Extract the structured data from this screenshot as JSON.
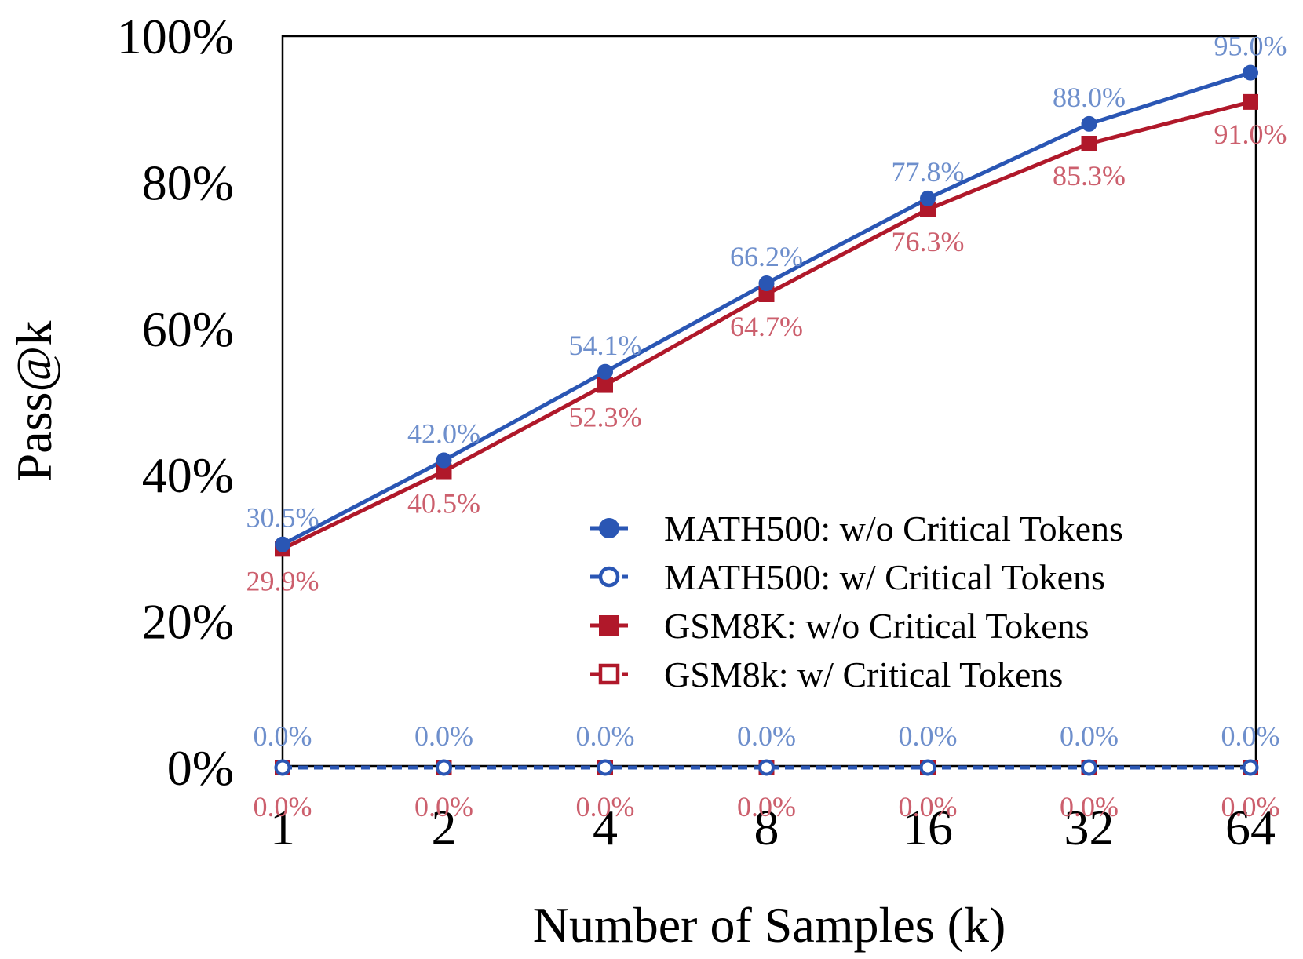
{
  "chart_data": {
    "type": "line",
    "title": "",
    "xlabel": "Number of Samples (k)",
    "ylabel": "Pass@k",
    "categories": [
      "1",
      "2",
      "4",
      "8",
      "16",
      "32",
      "64"
    ],
    "y_ticks": [
      "0%",
      "20%",
      "40%",
      "60%",
      "80%",
      "100%"
    ],
    "ylim": [
      0,
      100
    ],
    "grid": false,
    "legend_position": "center-right",
    "series": [
      {
        "name": "MATH500: w/o Critical Tokens",
        "values": [
          30.5,
          42.0,
          54.1,
          66.2,
          77.8,
          88.0,
          95.0
        ],
        "labels": [
          "30.5%",
          "42.0%",
          "54.1%",
          "66.2%",
          "77.8%",
          "88.0%",
          "95.0%"
        ],
        "color": "#2a56b4",
        "label_color": "#6e8fcc",
        "marker": "circle",
        "filled": true,
        "line_style": "solid",
        "label_side": "above"
      },
      {
        "name": "MATH500: w/ Critical Tokens",
        "values": [
          0,
          0,
          0,
          0,
          0,
          0,
          0
        ],
        "labels": [
          "0.0%",
          "0.0%",
          "0.0%",
          "0.0%",
          "0.0%",
          "0.0%",
          "0.0%"
        ],
        "color": "#2a56b4",
        "label_color": "#6e8fcc",
        "marker": "circle",
        "filled": false,
        "line_style": "dashed",
        "label_side": "above"
      },
      {
        "name": "GSM8K: w/o Critical Tokens",
        "values": [
          29.9,
          40.5,
          52.3,
          64.7,
          76.3,
          85.3,
          91.0
        ],
        "labels": [
          "29.9%",
          "40.5%",
          "52.3%",
          "64.7%",
          "76.3%",
          "85.3%",
          "91.0%"
        ],
        "color": "#b0182a",
        "label_color": "#cc5f6d",
        "marker": "square",
        "filled": true,
        "line_style": "solid",
        "label_side": "below"
      },
      {
        "name": "GSM8k: w/ Critical Tokens",
        "values": [
          0,
          0,
          0,
          0,
          0,
          0,
          0
        ],
        "labels": [
          "0.0%",
          "0.0%",
          "0.0%",
          "0.0%",
          "0.0%",
          "0.0%",
          "0.0%"
        ],
        "color": "#b0182a",
        "label_color": "#cc5f6d",
        "marker": "square",
        "filled": false,
        "line_style": "dashed",
        "label_side": "below"
      }
    ]
  }
}
